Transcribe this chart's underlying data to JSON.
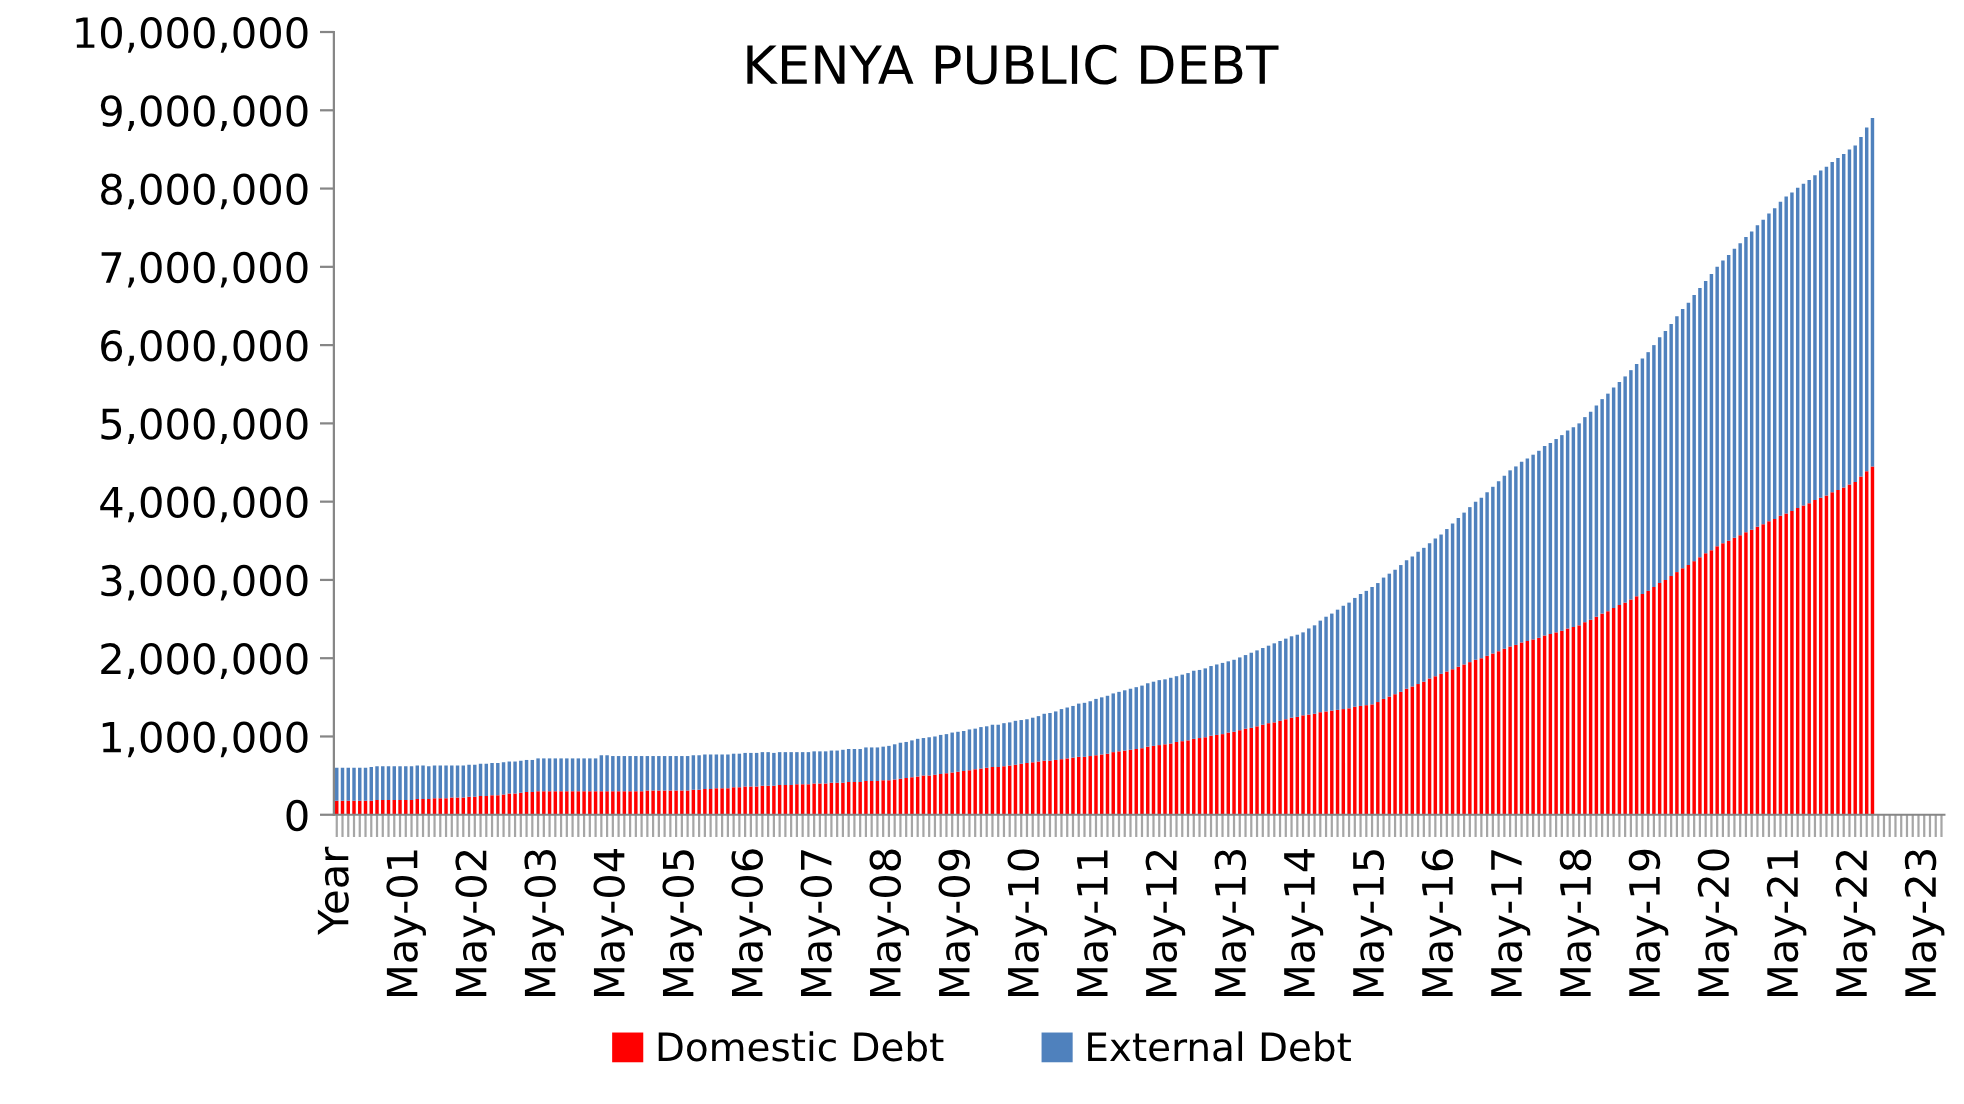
{
  "chart_data": {
    "type": "bar",
    "stacked": true,
    "title": "KENYA PUBLIC DEBT",
    "categories": [
      "Year",
      null,
      null,
      null,
      null,
      null,
      null,
      null,
      null,
      null,
      null,
      null,
      "May-01",
      null,
      null,
      null,
      null,
      null,
      null,
      null,
      null,
      null,
      null,
      null,
      "May-02",
      null,
      null,
      null,
      null,
      null,
      null,
      null,
      null,
      null,
      null,
      null,
      "May-03",
      null,
      null,
      null,
      null,
      null,
      null,
      null,
      null,
      null,
      null,
      null,
      "May-04",
      null,
      null,
      null,
      null,
      null,
      null,
      null,
      null,
      null,
      null,
      null,
      "May-05",
      null,
      null,
      null,
      null,
      null,
      null,
      null,
      null,
      null,
      null,
      null,
      "May-06",
      null,
      null,
      null,
      null,
      null,
      null,
      null,
      null,
      null,
      null,
      null,
      "May-07",
      null,
      null,
      null,
      null,
      null,
      null,
      null,
      null,
      null,
      null,
      null,
      "May-08",
      null,
      null,
      null,
      null,
      null,
      null,
      null,
      null,
      null,
      null,
      null,
      "May-09",
      null,
      null,
      null,
      null,
      null,
      null,
      null,
      null,
      null,
      null,
      null,
      "May-10",
      null,
      null,
      null,
      null,
      null,
      null,
      null,
      null,
      null,
      null,
      null,
      "May-11",
      null,
      null,
      null,
      null,
      null,
      null,
      null,
      null,
      null,
      null,
      null,
      "May-12",
      null,
      null,
      null,
      null,
      null,
      null,
      null,
      null,
      null,
      null,
      null,
      "May-13",
      null,
      null,
      null,
      null,
      null,
      null,
      null,
      null,
      null,
      null,
      null,
      "May-14",
      null,
      null,
      null,
      null,
      null,
      null,
      null,
      null,
      null,
      null,
      null,
      "May-15",
      null,
      null,
      null,
      null,
      null,
      null,
      null,
      null,
      null,
      null,
      null,
      "May-16",
      null,
      null,
      null,
      null,
      null,
      null,
      null,
      null,
      null,
      null,
      null,
      "May-17",
      null,
      null,
      null,
      null,
      null,
      null,
      null,
      null,
      null,
      null,
      null,
      "May-18",
      null,
      null,
      null,
      null,
      null,
      null,
      null,
      null,
      null,
      null,
      null,
      "May-19",
      null,
      null,
      null,
      null,
      null,
      null,
      null,
      null,
      null,
      null,
      null,
      "May-20",
      null,
      null,
      null,
      null,
      null,
      null,
      null,
      null,
      null,
      null,
      null,
      "May-21",
      null,
      null,
      null,
      null,
      null,
      null,
      null,
      null,
      null,
      null,
      null,
      "May-22",
      null,
      null,
      null,
      null,
      null,
      null,
      null,
      null,
      null,
      null,
      null,
      "May-23",
      null,
      null,
      null
    ],
    "series": [
      {
        "name": "Domestic Debt",
        "color": "#ff0000",
        "values": [
          180000,
          180000,
          180000,
          180000,
          180000,
          180000,
          180000,
          190000,
          190000,
          190000,
          190000,
          190000,
          190000,
          190000,
          200000,
          200000,
          200000,
          210000,
          210000,
          210000,
          220000,
          220000,
          220000,
          230000,
          230000,
          240000,
          240000,
          250000,
          250000,
          260000,
          270000,
          270000,
          280000,
          290000,
          290000,
          300000,
          300000,
          300000,
          300000,
          300000,
          300000,
          300000,
          300000,
          300000,
          300000,
          300000,
          300000,
          300000,
          300000,
          300000,
          300000,
          300000,
          300000,
          300000,
          310000,
          310000,
          310000,
          310000,
          310000,
          310000,
          310000,
          310000,
          320000,
          320000,
          330000,
          330000,
          340000,
          340000,
          340000,
          350000,
          350000,
          360000,
          360000,
          360000,
          370000,
          370000,
          370000,
          380000,
          380000,
          380000,
          390000,
          390000,
          390000,
          400000,
          400000,
          400000,
          410000,
          410000,
          410000,
          420000,
          420000,
          420000,
          430000,
          430000,
          430000,
          440000,
          440000,
          450000,
          460000,
          470000,
          480000,
          490000,
          500000,
          500000,
          510000,
          520000,
          530000,
          540000,
          550000,
          560000,
          570000,
          580000,
          590000,
          600000,
          610000,
          610000,
          620000,
          630000,
          640000,
          650000,
          660000,
          670000,
          680000,
          690000,
          690000,
          700000,
          710000,
          720000,
          730000,
          740000,
          740000,
          750000,
          760000,
          770000,
          780000,
          800000,
          810000,
          820000,
          830000,
          840000,
          850000,
          870000,
          880000,
          890000,
          900000,
          910000,
          930000,
          940000,
          950000,
          970000,
          980000,
          990000,
          1010000,
          1020000,
          1030000,
          1050000,
          1060000,
          1080000,
          1100000,
          1110000,
          1130000,
          1150000,
          1170000,
          1180000,
          1200000,
          1220000,
          1240000,
          1250000,
          1270000,
          1280000,
          1290000,
          1310000,
          1320000,
          1330000,
          1340000,
          1350000,
          1360000,
          1380000,
          1390000,
          1400000,
          1410000,
          1440000,
          1480000,
          1510000,
          1540000,
          1570000,
          1610000,
          1640000,
          1670000,
          1700000,
          1740000,
          1770000,
          1800000,
          1830000,
          1860000,
          1890000,
          1920000,
          1950000,
          1980000,
          2000000,
          2030000,
          2060000,
          2090000,
          2120000,
          2150000,
          2170000,
          2200000,
          2220000,
          2240000,
          2260000,
          2290000,
          2310000,
          2330000,
          2350000,
          2380000,
          2400000,
          2420000,
          2460000,
          2490000,
          2530000,
          2570000,
          2600000,
          2640000,
          2680000,
          2710000,
          2750000,
          2790000,
          2820000,
          2860000,
          2910000,
          2960000,
          3000000,
          3050000,
          3100000,
          3150000,
          3190000,
          3240000,
          3290000,
          3340000,
          3380000,
          3430000,
          3470000,
          3500000,
          3540000,
          3570000,
          3610000,
          3640000,
          3680000,
          3710000,
          3750000,
          3780000,
          3820000,
          3850000,
          3880000,
          3920000,
          3950000,
          3980000,
          4020000,
          4050000,
          4080000,
          4120000,
          4150000,
          4180000,
          4220000,
          4250000,
          4320000,
          4390000,
          4450000,
          null,
          null,
          null,
          null,
          null,
          null,
          null,
          null,
          null,
          null,
          null,
          null
        ]
      },
      {
        "name": "External Debt",
        "color": "#4f81bd",
        "values": [
          420000,
          420000,
          420000,
          420000,
          420000,
          420000,
          430000,
          430000,
          430000,
          430000,
          430000,
          430000,
          430000,
          430000,
          430000,
          430000,
          420000,
          420000,
          420000,
          420000,
          410000,
          410000,
          410000,
          410000,
          410000,
          410000,
          410000,
          410000,
          410000,
          410000,
          410000,
          410000,
          410000,
          410000,
          410000,
          420000,
          420000,
          420000,
          420000,
          420000,
          420000,
          420000,
          420000,
          420000,
          420000,
          420000,
          460000,
          460000,
          450000,
          450000,
          450000,
          450000,
          450000,
          450000,
          440000,
          440000,
          440000,
          440000,
          440000,
          440000,
          440000,
          440000,
          440000,
          440000,
          440000,
          440000,
          430000,
          430000,
          430000,
          430000,
          430000,
          430000,
          430000,
          430000,
          430000,
          430000,
          420000,
          420000,
          420000,
          420000,
          410000,
          410000,
          410000,
          410000,
          410000,
          410000,
          410000,
          410000,
          420000,
          420000,
          420000,
          420000,
          430000,
          430000,
          430000,
          430000,
          440000,
          450000,
          460000,
          460000,
          470000,
          480000,
          480000,
          490000,
          490000,
          500000,
          500000,
          510000,
          510000,
          510000,
          520000,
          520000,
          530000,
          530000,
          540000,
          540000,
          550000,
          550000,
          560000,
          560000,
          560000,
          570000,
          580000,
          600000,
          610000,
          620000,
          640000,
          650000,
          660000,
          680000,
          690000,
          700000,
          720000,
          730000,
          740000,
          750000,
          760000,
          770000,
          780000,
          790000,
          800000,
          810000,
          820000,
          830000,
          830000,
          840000,
          840000,
          850000,
          860000,
          870000,
          870000,
          880000,
          890000,
          900000,
          910000,
          910000,
          920000,
          930000,
          940000,
          960000,
          970000,
          980000,
          990000,
          1010000,
          1020000,
          1030000,
          1040000,
          1050000,
          1060000,
          1100000,
          1130000,
          1170000,
          1210000,
          1240000,
          1280000,
          1320000,
          1350000,
          1390000,
          1430000,
          1460000,
          1500000,
          1520000,
          1550000,
          1570000,
          1590000,
          1620000,
          1640000,
          1660000,
          1690000,
          1710000,
          1730000,
          1760000,
          1780000,
          1820000,
          1860000,
          1900000,
          1940000,
          1980000,
          2020000,
          2050000,
          2090000,
          2130000,
          2170000,
          2210000,
          2250000,
          2280000,
          2310000,
          2330000,
          2360000,
          2390000,
          2420000,
          2440000,
          2470000,
          2500000,
          2530000,
          2550000,
          2580000,
          2620000,
          2660000,
          2700000,
          2740000,
          2780000,
          2820000,
          2850000,
          2890000,
          2930000,
          2970000,
          3010000,
          3050000,
          3090000,
          3140000,
          3180000,
          3220000,
          3270000,
          3310000,
          3350000,
          3400000,
          3440000,
          3480000,
          3530000,
          3570000,
          3610000,
          3650000,
          3690000,
          3730000,
          3770000,
          3810000,
          3850000,
          3890000,
          3930000,
          3970000,
          4010000,
          4050000,
          4070000,
          4090000,
          4110000,
          4130000,
          4150000,
          4180000,
          4200000,
          4220000,
          4240000,
          4260000,
          4280000,
          4300000,
          4340000,
          4390000,
          4450000,
          null,
          null,
          null,
          null,
          null,
          null,
          null,
          null,
          null,
          null,
          null,
          null
        ]
      }
    ],
    "ylim": [
      0,
      10000000
    ],
    "yticks": [
      {
        "value": 0,
        "label": "0"
      },
      {
        "value": 1000000,
        "label": "1,000,000"
      },
      {
        "value": 2000000,
        "label": "2,000,000"
      },
      {
        "value": 3000000,
        "label": "3,000,000"
      },
      {
        "value": 4000000,
        "label": "4,000,000"
      },
      {
        "value": 5000000,
        "label": "5,000,000"
      },
      {
        "value": 6000000,
        "label": "6,000,000"
      },
      {
        "value": 7000000,
        "label": "7,000,000"
      },
      {
        "value": 8000000,
        "label": "8,000,000"
      },
      {
        "value": 9000000,
        "label": "9,000,000"
      },
      {
        "value": 10000000,
        "label": "10,000,000"
      }
    ],
    "grid": false,
    "legend": "bottom"
  }
}
